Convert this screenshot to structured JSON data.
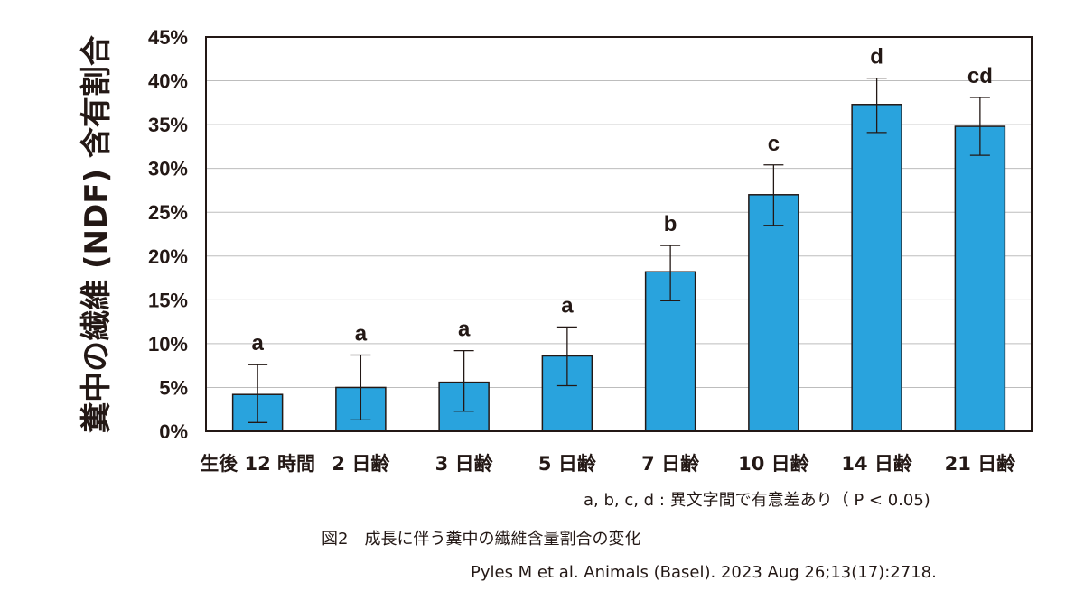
{
  "chart_data": {
    "type": "bar",
    "ylabel": "糞中の繊維 (NDF) 含有割合",
    "categories": [
      "生後 12 時間",
      "2 日齢",
      "3 日齢",
      "5 日齢",
      "7 日齢",
      "10 日齢",
      "14 日齢",
      "21 日齢"
    ],
    "values": [
      4.2,
      5.0,
      5.6,
      8.6,
      18.2,
      27.0,
      37.3,
      34.8
    ],
    "error_low": [
      1.0,
      1.3,
      2.3,
      5.2,
      14.9,
      23.5,
      34.1,
      31.5
    ],
    "error_high": [
      7.6,
      8.7,
      9.2,
      11.9,
      21.2,
      30.4,
      40.3,
      38.1
    ],
    "significance": [
      "a",
      "a",
      "a",
      "a",
      "b",
      "c",
      "d",
      "cd"
    ],
    "ylim": [
      0,
      45
    ],
    "yticks": [
      0,
      5,
      10,
      15,
      20,
      25,
      30,
      35,
      40,
      45
    ],
    "ytick_labels": [
      "0%",
      "5%",
      "10%",
      "15%",
      "20%",
      "25%",
      "30%",
      "35%",
      "40%",
      "45%"
    ],
    "grid": true,
    "bar_color": "#29A3DD",
    "significance_note": "a, b, c, d : 異文字間で有意差あり（ P < 0.05)"
  },
  "caption": "図2　成長に伴う糞中の繊維含量割合の変化",
  "source": "Pyles M et al. Animals (Basel). 2023 Aug 26;13(17):2718."
}
